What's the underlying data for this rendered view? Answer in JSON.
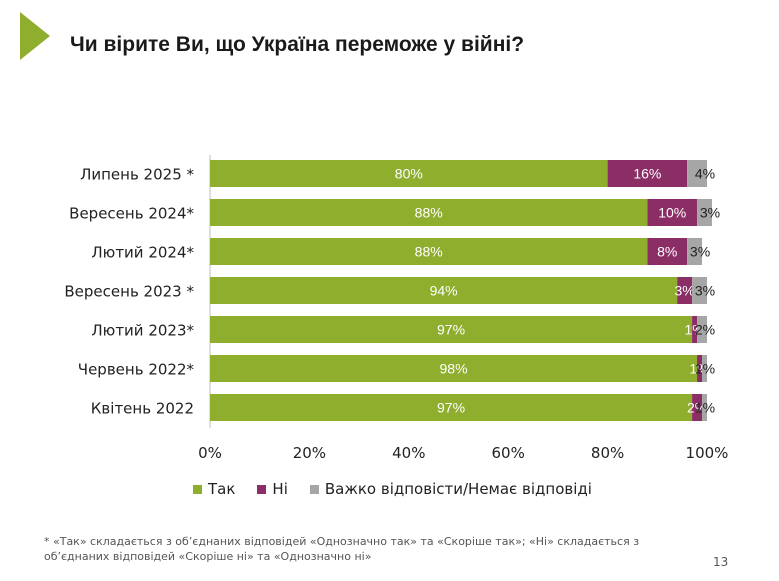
{
  "slide": {
    "title": "Чи вірите Ви, що Україна переможе у війні?",
    "footnote": "* «Так» складається з об’єднаних відповідей «Однозначно так» та «Скоріше так»; «Ні» складається з об’єднаних відповідей «Скоріше ні» та «Однозначно ні»",
    "page_number": "13",
    "accent_color": "#8fae2e"
  },
  "chart_data": {
    "type": "bar",
    "orientation": "horizontal",
    "stacked": true,
    "categories": [
      "Липень 2025 *",
      "Вересень 2024*",
      "Лютий 2024*",
      "Вересень 2023 *",
      "Лютий 2023*",
      "Червень 2022*",
      "Квітень 2022"
    ],
    "series": [
      {
        "name": "Так",
        "color": "#8fae2e",
        "values": [
          80,
          88,
          88,
          94,
          97,
          98,
          97
        ],
        "labels": [
          "80%",
          "88%",
          "88%",
          "94%",
          "97%",
          "98%",
          "97%"
        ]
      },
      {
        "name": "Ні",
        "color": "#8b2e66",
        "values": [
          16,
          10,
          8,
          3,
          1,
          1,
          2
        ],
        "labels": [
          "16%",
          "10%",
          "8%",
          "3%",
          "1%",
          "1%",
          "2%"
        ]
      },
      {
        "name": "Важко відповісти/Немає відповіді",
        "color": "#a6a6a6",
        "values": [
          4,
          3,
          3,
          3,
          2,
          1,
          1
        ],
        "labels": [
          "4%",
          "3%",
          "3%",
          "3%",
          "2%",
          "1%",
          "1%"
        ]
      }
    ],
    "xlim": [
      0,
      100
    ],
    "x_ticks": [
      "0%",
      "20%",
      "40%",
      "60%",
      "80%",
      "100%"
    ],
    "legend": "bottom",
    "grid": false
  }
}
